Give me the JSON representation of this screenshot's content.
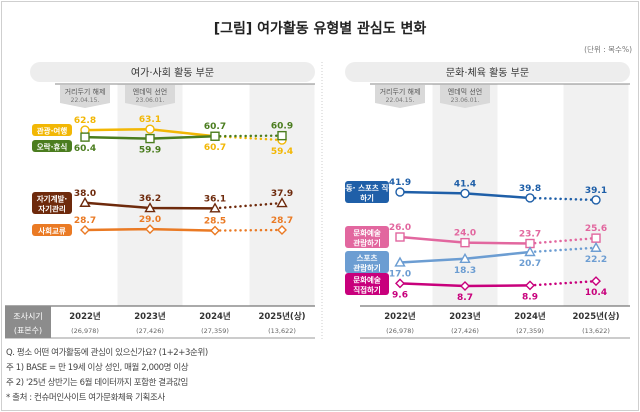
{
  "title": "[그림] 여가활동 유형별 관심도 변화",
  "unit": "(단위 : 복수%)",
  "events": [
    {
      "label": "거리두기 해제",
      "date": "22.04.15."
    },
    {
      "label": "엔데믹 선언",
      "date": "23.06.01."
    }
  ],
  "table": {
    "row_header_1": "조사시기",
    "row_header_2": "(표본수)",
    "years": [
      "2022년",
      "2023년",
      "2024년",
      "2025년(상)"
    ],
    "samples": [
      "(26,978)",
      "(27,426)",
      "(27,359)",
      "(13,622)"
    ]
  },
  "notes": [
    "Q. 평소 어떤 여가활동에 관심이 있으신가요? (1+2+3순위)",
    "주 1) BASE = 만 19세 이상 성인, 매월 2,000명 이상",
    "주 2) '25년 상반기는 6월 데이터까지 포함한 결과값임",
    "* 출처 : 컨슈머인사이트 여가문화체육 기획조사"
  ],
  "chart_data": [
    {
      "type": "line",
      "title": "여가·사회 활동 부문",
      "categories": [
        "2022년",
        "2023년",
        "2024년",
        "2025년(상)"
      ],
      "projection_style": "2024→2025 dotted",
      "series": [
        {
          "name": "관광·여행",
          "color": "#f2b705",
          "marker": "circle",
          "values": [
            62.8,
            63.1,
            60.7,
            59.4
          ]
        },
        {
          "name": "오락·휴식",
          "color": "#4b7d1f",
          "marker": "square",
          "values": [
            60.4,
            59.9,
            60.7,
            60.9
          ]
        },
        {
          "name": "자기계발·자기관리",
          "color": "#6e2a0c",
          "marker": "triangle",
          "values": [
            38.0,
            36.2,
            36.1,
            37.9
          ]
        },
        {
          "name": "사회교류",
          "color": "#ea7a24",
          "marker": "diamond",
          "values": [
            28.7,
            29.0,
            28.5,
            28.7
          ]
        }
      ]
    },
    {
      "type": "line",
      "title": "문화·체육 활동 부문",
      "categories": [
        "2022년",
        "2023년",
        "2024년",
        "2025년(상)"
      ],
      "projection_style": "2024→2025 dotted",
      "series": [
        {
          "name": "운동·스포츠 직접 하기",
          "color": "#1f5fa8",
          "marker": "circle",
          "values": [
            41.9,
            41.4,
            39.8,
            39.1
          ]
        },
        {
          "name": "문화예술 관람하기",
          "color": "#e2679f",
          "marker": "square",
          "values": [
            26.0,
            24.0,
            23.7,
            25.6
          ]
        },
        {
          "name": "스포츠 관람하기",
          "color": "#6c9dd2",
          "marker": "triangle",
          "values": [
            17.0,
            18.3,
            20.7,
            22.2
          ]
        },
        {
          "name": "문화예술 직접하기",
          "color": "#c8007c",
          "marker": "diamond",
          "values": [
            9.6,
            8.7,
            8.9,
            10.4
          ]
        }
      ]
    }
  ]
}
